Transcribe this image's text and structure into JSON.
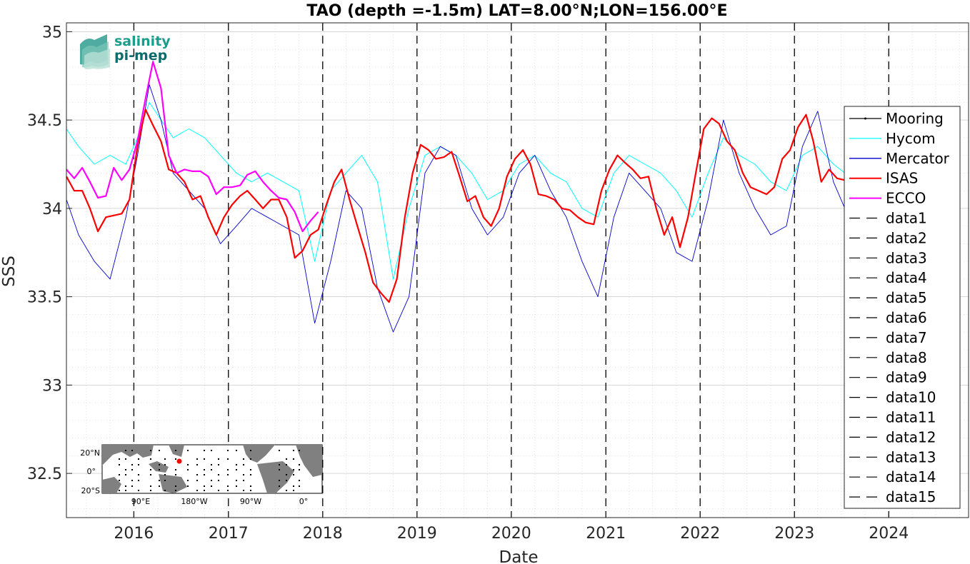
{
  "chart_data": {
    "type": "line",
    "title": "TAO (depth =-1.5m) LAT=8.00°N;LON=156.00°E",
    "xlabel": "Date",
    "ylabel": "SSS",
    "xlim": [
      "2015-04-15",
      "2024-11-05"
    ],
    "ylim": [
      32.25,
      35.05
    ],
    "x_ticks": [
      "2016",
      "2017",
      "2018",
      "2019",
      "2020",
      "2021",
      "2022",
      "2023",
      "2024"
    ],
    "y_ticks": [
      "32.5",
      "33",
      "33.5",
      "34",
      "34.5",
      "35"
    ],
    "grid": true,
    "legend_position": "right",
    "annual_markers": [
      "2016-01-01",
      "2017-01-01",
      "2018-01-01",
      "2019-01-01",
      "2020-01-01",
      "2021-01-01",
      "2022-01-01",
      "2023-01-01",
      "2024-01-01"
    ],
    "series": [
      {
        "name": "Mooring",
        "color": "#000000",
        "style": "solid",
        "x": [],
        "y": []
      },
      {
        "name": "Hycom",
        "color": "#00ffff",
        "style": "solid",
        "x": [
          "2015-04-15",
          "2015-06-01",
          "2015-08-01",
          "2015-10-01",
          "2015-12-01",
          "2016-01-15",
          "2016-03-01",
          "2016-04-15",
          "2016-06-01",
          "2016-08-01",
          "2016-10-01",
          "2016-12-01",
          "2017-02-01",
          "2017-04-01",
          "2017-06-01",
          "2017-08-01",
          "2017-10-01",
          "2017-12-01",
          "2018-02-01",
          "2018-04-01",
          "2018-06-01",
          "2018-08-01",
          "2018-10-01",
          "2018-12-01",
          "2019-02-01",
          "2019-04-01",
          "2019-06-01",
          "2019-08-01",
          "2019-10-01",
          "2019-12-01",
          "2020-02-01",
          "2020-04-01",
          "2020-06-01",
          "2020-08-01",
          "2020-10-01",
          "2020-12-01",
          "2021-02-01",
          "2021-04-01",
          "2021-06-01",
          "2021-08-01",
          "2021-10-01",
          "2021-12-01",
          "2022-02-01",
          "2022-04-01",
          "2022-06-01",
          "2022-08-01",
          "2022-10-01",
          "2022-12-01",
          "2023-02-01",
          "2023-04-01",
          "2023-06-01",
          "2023-07-15"
        ],
        "y": [
          34.45,
          34.35,
          34.25,
          34.3,
          34.25,
          34.4,
          34.6,
          34.5,
          34.4,
          34.45,
          34.4,
          34.3,
          34.2,
          34.15,
          34.2,
          34.15,
          34.1,
          33.7,
          34.1,
          34.2,
          34.3,
          34.15,
          33.6,
          34.0,
          34.3,
          34.35,
          34.3,
          34.2,
          34.05,
          34.1,
          34.25,
          34.3,
          34.2,
          34.15,
          34.0,
          33.95,
          34.2,
          34.3,
          34.25,
          34.2,
          34.1,
          33.95,
          34.2,
          34.4,
          34.3,
          34.25,
          34.15,
          34.1,
          34.3,
          34.35,
          34.25,
          34.2
        ]
      },
      {
        "name": "Mercator",
        "color": "#0000cc",
        "style": "solid",
        "x": [
          "2015-04-15",
          "2015-06-01",
          "2015-08-01",
          "2015-10-01",
          "2015-12-01",
          "2016-01-15",
          "2016-03-01",
          "2016-04-15",
          "2016-06-01",
          "2016-08-01",
          "2016-10-01",
          "2016-12-01",
          "2017-02-01",
          "2017-04-01",
          "2017-06-01",
          "2017-08-01",
          "2017-10-01",
          "2017-12-01",
          "2018-02-01",
          "2018-04-01",
          "2018-06-01",
          "2018-08-01",
          "2018-10-01",
          "2018-12-01",
          "2019-02-01",
          "2019-04-01",
          "2019-06-01",
          "2019-08-01",
          "2019-10-01",
          "2019-12-01",
          "2020-02-01",
          "2020-04-01",
          "2020-06-01",
          "2020-08-01",
          "2020-10-01",
          "2020-12-01",
          "2021-02-01",
          "2021-04-01",
          "2021-06-01",
          "2021-08-01",
          "2021-10-01",
          "2021-12-01",
          "2022-02-01",
          "2022-04-01",
          "2022-06-01",
          "2022-08-01",
          "2022-10-01",
          "2022-12-01",
          "2023-02-01",
          "2023-04-01",
          "2023-06-01",
          "2023-07-15"
        ],
        "y": [
          34.05,
          33.85,
          33.7,
          33.6,
          33.95,
          34.3,
          34.7,
          34.5,
          34.2,
          34.1,
          34.0,
          33.8,
          33.9,
          34.0,
          33.95,
          33.9,
          33.85,
          33.35,
          33.7,
          34.1,
          34.0,
          33.55,
          33.3,
          33.5,
          34.2,
          34.35,
          34.3,
          34.0,
          33.85,
          33.95,
          34.2,
          34.3,
          34.1,
          33.95,
          33.7,
          33.5,
          33.95,
          34.2,
          34.1,
          34.0,
          33.75,
          33.7,
          34.05,
          34.5,
          34.2,
          34.0,
          33.85,
          33.9,
          34.35,
          34.55,
          34.15,
          34.0
        ]
      },
      {
        "name": "ISAS",
        "color": "#ff0000",
        "style": "solid",
        "x": [
          "2015-04-15",
          "2015-05-15",
          "2015-06-15",
          "2015-07-15",
          "2015-08-15",
          "2015-09-15",
          "2015-10-15",
          "2015-11-15",
          "2015-12-15",
          "2016-01-15",
          "2016-02-15",
          "2016-03-15",
          "2016-04-15",
          "2016-05-15",
          "2016-06-15",
          "2016-07-15",
          "2016-08-15",
          "2016-09-15",
          "2016-10-15",
          "2016-11-15",
          "2016-12-15",
          "2017-01-15",
          "2017-02-15",
          "2017-03-15",
          "2017-04-15",
          "2017-05-15",
          "2017-06-15",
          "2017-07-15",
          "2017-08-15",
          "2017-09-15",
          "2017-10-15",
          "2017-11-15",
          "2017-12-15",
          "2018-01-15",
          "2018-02-15",
          "2018-03-15",
          "2018-04-15",
          "2018-05-15",
          "2018-06-15",
          "2018-07-15",
          "2018-08-15",
          "2018-09-15",
          "2018-10-15",
          "2018-11-15",
          "2018-12-15",
          "2019-01-15",
          "2019-02-15",
          "2019-03-15",
          "2019-04-15",
          "2019-05-15",
          "2019-06-15",
          "2019-07-15",
          "2019-08-15",
          "2019-09-15",
          "2019-10-15",
          "2019-11-15",
          "2019-12-15",
          "2020-01-15",
          "2020-02-15",
          "2020-03-15",
          "2020-04-15",
          "2020-05-15",
          "2020-06-15",
          "2020-07-15",
          "2020-08-15",
          "2020-09-15",
          "2020-10-15",
          "2020-11-15",
          "2020-12-15",
          "2021-01-15",
          "2021-02-15",
          "2021-03-15",
          "2021-04-15",
          "2021-05-15",
          "2021-06-15",
          "2021-07-15",
          "2021-08-15",
          "2021-09-15",
          "2021-10-15",
          "2021-11-15",
          "2021-12-15",
          "2022-01-15",
          "2022-02-15",
          "2022-03-15",
          "2022-04-15",
          "2022-05-15",
          "2022-06-15",
          "2022-07-15",
          "2022-08-15",
          "2022-09-15",
          "2022-10-15",
          "2022-11-15",
          "2022-12-15",
          "2023-01-15",
          "2023-02-15",
          "2023-03-15",
          "2023-04-15",
          "2023-05-15",
          "2023-06-15",
          "2023-07-15"
        ],
        "y": [
          34.18,
          34.1,
          34.1,
          34.0,
          33.87,
          33.95,
          33.96,
          33.97,
          34.05,
          34.35,
          34.56,
          34.47,
          34.38,
          34.22,
          34.2,
          34.15,
          34.05,
          34.07,
          33.95,
          33.85,
          33.95,
          34.02,
          34.07,
          34.1,
          34.05,
          34.0,
          34.05,
          34.05,
          33.95,
          33.72,
          33.76,
          33.85,
          33.88,
          34.02,
          34.15,
          34.22,
          34.05,
          33.9,
          33.75,
          33.58,
          33.52,
          33.47,
          33.6,
          33.95,
          34.2,
          34.36,
          34.33,
          34.28,
          34.29,
          34.32,
          34.18,
          34.04,
          34.07,
          33.95,
          33.9,
          34.0,
          34.18,
          34.28,
          34.33,
          34.25,
          34.08,
          34.07,
          34.05,
          34.0,
          33.99,
          33.95,
          33.92,
          33.91,
          34.1,
          34.22,
          34.3,
          34.26,
          34.22,
          34.17,
          34.18,
          34.0,
          33.85,
          33.95,
          33.78,
          33.95,
          34.2,
          34.45,
          34.51,
          34.48,
          34.38,
          34.33,
          34.2,
          34.12,
          34.1,
          34.08,
          34.12,
          34.28,
          34.33,
          34.46,
          34.53,
          34.38,
          34.15,
          34.22,
          34.17,
          34.16
        ]
      },
      {
        "name": "ECCO",
        "color": "#ff00ff",
        "style": "solid",
        "x": [
          "2015-04-15",
          "2015-05-15",
          "2015-06-15",
          "2015-07-15",
          "2015-08-15",
          "2015-09-15",
          "2015-10-15",
          "2015-11-15",
          "2015-12-15",
          "2016-01-15",
          "2016-02-15",
          "2016-03-15",
          "2016-04-15",
          "2016-05-15",
          "2016-06-15",
          "2016-07-15",
          "2016-08-15",
          "2016-09-15",
          "2016-10-15",
          "2016-11-15",
          "2016-12-15",
          "2017-01-15",
          "2017-02-15",
          "2017-03-15",
          "2017-04-15",
          "2017-05-15",
          "2017-06-15",
          "2017-07-15",
          "2017-08-15",
          "2017-09-15",
          "2017-10-15",
          "2017-11-15",
          "2017-12-15"
        ],
        "y": [
          34.22,
          34.17,
          34.23,
          34.15,
          34.06,
          34.07,
          34.23,
          34.16,
          34.22,
          34.38,
          34.62,
          34.83,
          34.68,
          34.3,
          34.2,
          34.22,
          34.21,
          34.21,
          34.18,
          34.08,
          34.12,
          34.12,
          34.13,
          34.19,
          34.21,
          34.15,
          34.1,
          34.06,
          34.05,
          33.98,
          33.87,
          33.93,
          33.98
        ]
      },
      {
        "name": "data1",
        "color": "#000000",
        "style": "dashed",
        "x": [],
        "y": []
      },
      {
        "name": "data2",
        "color": "#000000",
        "style": "dashed",
        "x": [],
        "y": []
      },
      {
        "name": "data3",
        "color": "#000000",
        "style": "dashed",
        "x": [],
        "y": []
      },
      {
        "name": "data4",
        "color": "#000000",
        "style": "dashed",
        "x": [],
        "y": []
      },
      {
        "name": "data5",
        "color": "#000000",
        "style": "dashed",
        "x": [],
        "y": []
      },
      {
        "name": "data6",
        "color": "#000000",
        "style": "dashed",
        "x": [],
        "y": []
      },
      {
        "name": "data7",
        "color": "#000000",
        "style": "dashed",
        "x": [],
        "y": []
      },
      {
        "name": "data8",
        "color": "#000000",
        "style": "dashed",
        "x": [],
        "y": []
      },
      {
        "name": "data9",
        "color": "#000000",
        "style": "dashed",
        "x": [],
        "y": []
      },
      {
        "name": "data10",
        "color": "#000000",
        "style": "dashed",
        "x": [],
        "y": []
      },
      {
        "name": "data11",
        "color": "#000000",
        "style": "dashed",
        "x": [],
        "y": []
      },
      {
        "name": "data12",
        "color": "#000000",
        "style": "dashed",
        "x": [],
        "y": []
      },
      {
        "name": "data13",
        "color": "#000000",
        "style": "dashed",
        "x": [],
        "y": []
      },
      {
        "name": "data14",
        "color": "#000000",
        "style": "dashed",
        "x": [],
        "y": []
      },
      {
        "name": "data15",
        "color": "#000000",
        "style": "dashed",
        "x": [],
        "y": []
      }
    ]
  },
  "logo": {
    "line1": "salinity",
    "line2": "pi-mep",
    "color1": "#1a9e8c",
    "color2": "#0f6b6b"
  },
  "inset_map": {
    "y_labels": [
      "20°N",
      "0°",
      "20°S"
    ],
    "x_labels": [
      "90°E",
      "180°W",
      "90°W",
      "0°"
    ],
    "land_color": "#808080",
    "marker_color": "#ff0000"
  }
}
